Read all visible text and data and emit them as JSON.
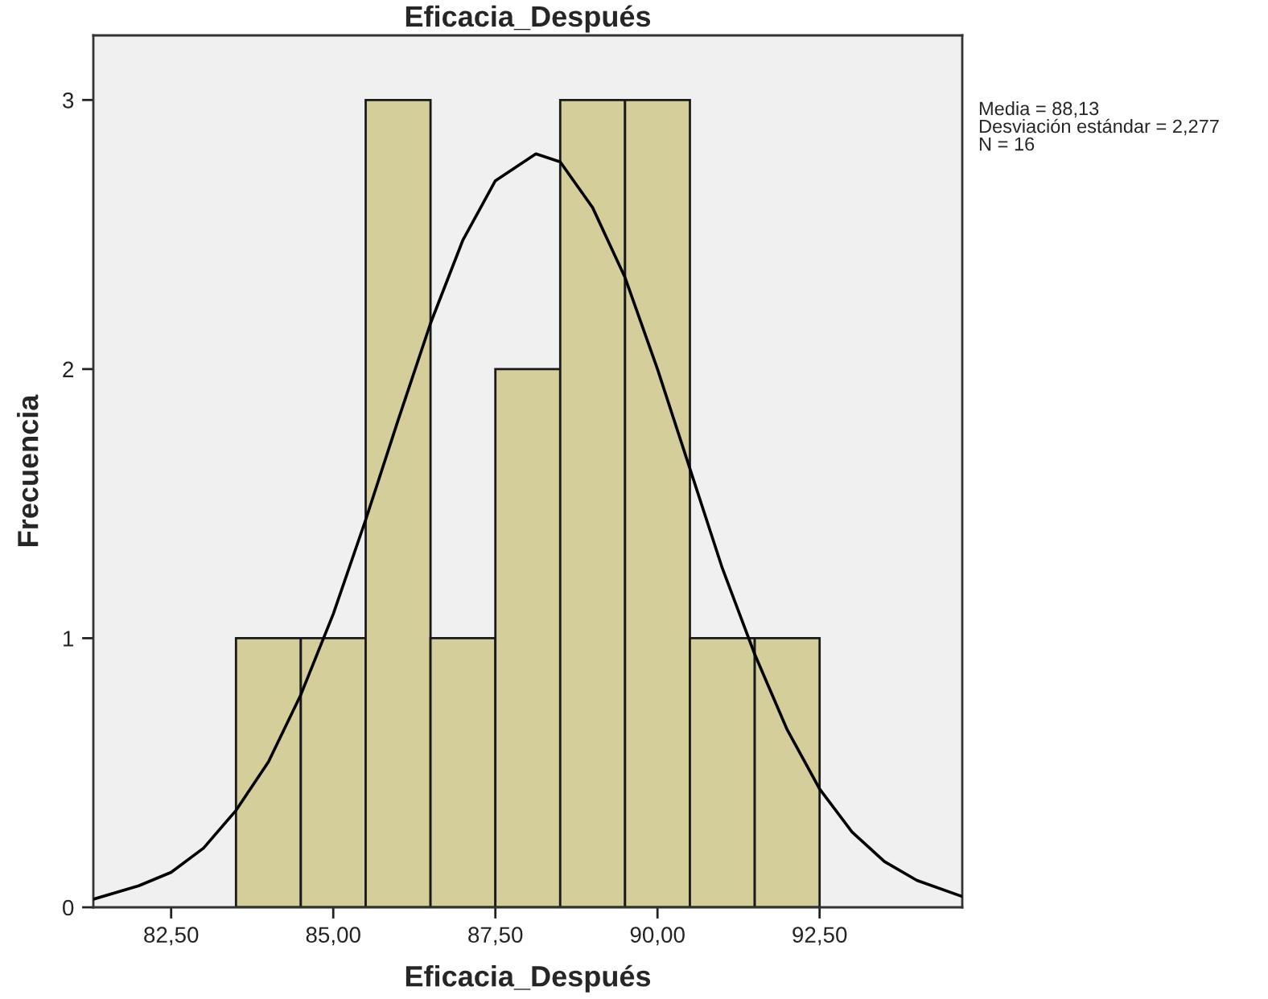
{
  "chart_data": {
    "type": "histogram",
    "title": "Eficacia_Después",
    "xlabel": "Eficacia_Después",
    "ylabel": "Frecuencia",
    "bins": [
      83.5,
      84.5,
      85.5,
      86.5,
      87.5,
      88.5,
      89.5,
      90.5,
      91.5,
      92.5
    ],
    "series": [
      {
        "color": "#d3ce9a",
        "values": [
          1,
          1,
          3,
          1,
          2,
          3,
          3,
          1,
          1
        ]
      },
      {
        "type": "line",
        "color": "#000000",
        "x": [
          81.3,
          82,
          82.5,
          83,
          83.5,
          84,
          84.5,
          85,
          85.5,
          86,
          86.5,
          87,
          87.5,
          88.125,
          88.5,
          89,
          89.5,
          90,
          90.5,
          91,
          91.5,
          92,
          92.5,
          93,
          93.5,
          94,
          94.7
        ],
        "values": [
          0.03,
          0.08,
          0.13,
          0.22,
          0.36,
          0.54,
          0.79,
          1.09,
          1.44,
          1.81,
          2.17,
          2.48,
          2.7,
          2.8,
          2.77,
          2.6,
          2.34,
          2.0,
          1.63,
          1.26,
          0.94,
          0.66,
          0.44,
          0.28,
          0.17,
          0.1,
          0.04
        ]
      }
    ],
    "xlim": [
      81.3,
      94.7
    ],
    "ylim": [
      0,
      3.24
    ],
    "xticks": [
      {
        "value": 82.5,
        "label": "82,50"
      },
      {
        "value": 85,
        "label": "85,00"
      },
      {
        "value": 87.5,
        "label": "87,50"
      },
      {
        "value": 90,
        "label": "90,00"
      },
      {
        "value": 92.5,
        "label": "92,50"
      }
    ],
    "yticks": [
      0,
      1,
      2,
      3
    ],
    "grid": false,
    "legend": false,
    "annotations": [
      "Media = 88,13",
      "Desviación estándar = 2,277",
      "N = 16"
    ]
  }
}
